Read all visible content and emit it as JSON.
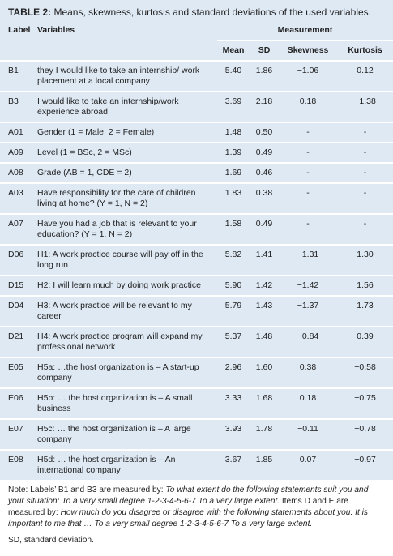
{
  "title": {
    "label": "TABLE 2:",
    "text": "Means, skewness, kurtosis and standard deviations of the used variables."
  },
  "table": {
    "headers": {
      "label": "Label",
      "variables": "Variables",
      "group": "Measurement",
      "columns": [
        "Mean",
        "SD",
        "Skewness",
        "Kurtosis"
      ]
    },
    "rows": [
      [
        "B1",
        "they I would like to take an internship/ work placement at a local company",
        "5.40",
        "1.86",
        "−1.06",
        "0.12"
      ],
      [
        "B3",
        "I would like to take an internship/work experience abroad",
        "3.69",
        "2.18",
        "0.18",
        "−1.38"
      ],
      [
        "A01",
        "Gender (1 = Male, 2 = Female)",
        "1.48",
        "0.50",
        "-",
        "-"
      ],
      [
        "A09",
        "Level (1 = BSc, 2 = MSc)",
        "1.39",
        "0.49",
        "-",
        "-"
      ],
      [
        "A08",
        "Grade (AB = 1, CDE = 2)",
        "1.69",
        "0.46",
        "-",
        "-"
      ],
      [
        "A03",
        "Have responsibility for the care of children living at home? (Y = 1, N = 2)",
        "1.83",
        "0.38",
        "-",
        "-"
      ],
      [
        "A07",
        "Have you had a job that is relevant to your education? (Y = 1, N = 2)",
        "1.58",
        "0.49",
        "-",
        "-"
      ],
      [
        "D06",
        "H1: A work practice course will pay off in the long run",
        "5.82",
        "1.41",
        "−1.31",
        "1.30"
      ],
      [
        "D15",
        "H2: I will learn much by doing work practice",
        "5.90",
        "1.42",
        "−1.42",
        "1.56"
      ],
      [
        "D04",
        "H3: A work practice will be relevant to my career",
        "5.79",
        "1.43",
        "−1.37",
        "1.73"
      ],
      [
        "D21",
        "H4: A work practice program will expand my professional network",
        "5.37",
        "1.48",
        "−0.84",
        "0.39"
      ],
      [
        "E05",
        "H5a: …the host organization is – A start-up company",
        "2.96",
        "1.60",
        "0.38",
        "−0.58"
      ],
      [
        "E06",
        "H5b: … the host organization is – A small business",
        "3.33",
        "1.68",
        "0.18",
        "−0.75"
      ],
      [
        "E07",
        "H5c: … the host organization is – A large company",
        "3.93",
        "1.78",
        "−0.11",
        "−0.78"
      ],
      [
        "E08",
        "H5d: … the host organization is – An international company",
        "3.67",
        "1.85",
        "0.07",
        "−0.97"
      ]
    ]
  },
  "note": {
    "parts": [
      {
        "text": "Note: Labels’ B1 and B3 are measured by: ",
        "italic": false
      },
      {
        "text": "To what extent do the following statements suit you and your situation: To a very small degree 1-2-3-4-5-6-7 To a very large extent.",
        "italic": true
      },
      {
        "text": " Items D and E are measured by: ",
        "italic": false
      },
      {
        "text": "How much do you disagree or disagree with the following statements about you: It is important to me that … To a very small degree 1-2-3-4-5-6-7 To a very large extent.",
        "italic": true
      }
    ],
    "abbreviation": "SD, standard deviation."
  }
}
